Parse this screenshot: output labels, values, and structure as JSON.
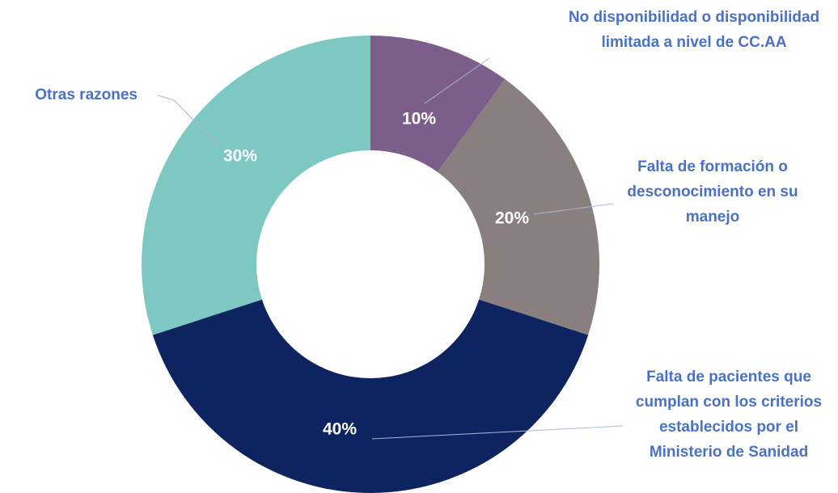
{
  "chart_data": {
    "type": "donut",
    "categories": [
      "No disponibilidad o disponibilidad limitada a nivel de CC.AA",
      "Falta de formación o desconocimiento en su manejo",
      "Falta de pacientes que cumplan con los criterios establecidos por el Ministerio de Sanidad",
      "Otras razones"
    ],
    "values": [
      10,
      20,
      40,
      30
    ],
    "value_labels": [
      "10%",
      "20%",
      "40%",
      "30%"
    ],
    "colors": [
      "#7b5e8a",
      "#8a7f7f",
      "#0e2461",
      "#7ec8c4"
    ]
  }
}
